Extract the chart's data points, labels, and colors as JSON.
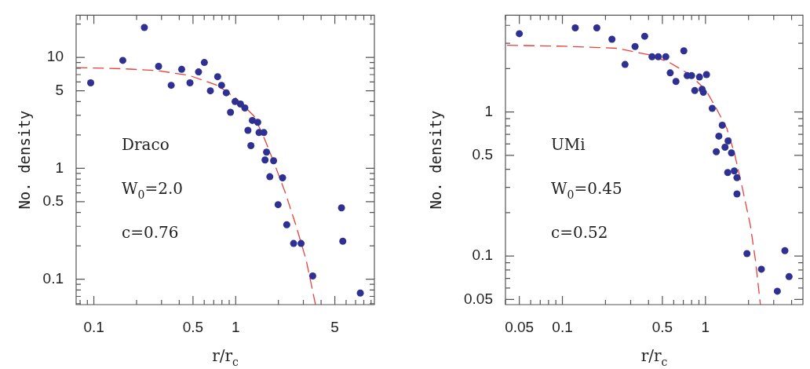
{
  "chart_data": [
    {
      "type": "scatter",
      "xlabel": "r/r$_{c}$",
      "ylabel": "No. density",
      "log": "xy",
      "marker": "circle",
      "xlim": [
        0.075,
        9.5
      ],
      "xticks": [
        {
          "value": 0.08,
          "label": null
        },
        {
          "value": 0.09,
          "label": null
        },
        0.1,
        {
          "value": 0.2,
          "label": null
        },
        {
          "value": 0.3,
          "label": null
        },
        {
          "value": 0.4,
          "label": null
        },
        0.5,
        {
          "value": 0.6,
          "label": null
        },
        {
          "value": 0.7,
          "label": null
        },
        {
          "value": 0.8,
          "label": null
        },
        {
          "value": 0.9,
          "label": null
        },
        1,
        {
          "value": 2,
          "label": null
        },
        {
          "value": 3,
          "label": null
        },
        {
          "value": 4,
          "label": null
        },
        5,
        {
          "value": 6,
          "label": null
        },
        {
          "value": 7,
          "label": null
        },
        {
          "value": 8,
          "label": null
        },
        {
          "value": 9,
          "label": null
        }
      ],
      "ylim": [
        0.059,
        24
      ],
      "yticks": [
        {
          "value": 0.06,
          "label": null
        },
        {
          "value": 0.07,
          "label": null
        },
        {
          "value": 0.08,
          "label": null
        },
        {
          "value": 0.09,
          "label": null
        },
        0.1,
        {
          "value": 0.2,
          "label": null
        },
        {
          "value": 0.3,
          "label": null
        },
        {
          "value": 0.4,
          "label": null
        },
        0.5,
        {
          "value": 0.6,
          "label": null
        },
        {
          "value": 0.7,
          "label": null
        },
        {
          "value": 0.8,
          "label": null
        },
        {
          "value": 0.9,
          "label": null
        },
        1,
        {
          "value": 2,
          "label": null
        },
        {
          "value": 3,
          "label": null
        },
        {
          "value": 4,
          "label": null
        },
        5,
        {
          "value": 6,
          "label": null
        },
        {
          "value": 7,
          "label": null
        },
        {
          "value": 8,
          "label": null
        },
        {
          "value": 9,
          "label": null
        },
        10,
        {
          "value": 20,
          "label": null
        }
      ],
      "annotations": [
        "Draco",
        "W$_{0}$=2.0",
        "c=0.76"
      ],
      "series": [
        {
          "color": "#2e3192",
          "x": [
            0.095,
            0.16,
            0.227,
            0.286,
            0.351,
            0.416,
            0.476,
            0.547,
            0.601,
            0.663,
            0.746,
            0.795,
            0.858,
            0.919,
            0.99,
            1.08,
            1.16,
            1.22,
            1.28,
            1.31,
            1.43,
            1.46,
            1.58,
            1.65,
            1.61,
            1.74,
            1.85,
            1.99,
            2.14,
            2.29,
            2.56,
            2.89,
            3.49,
            5.57,
            5.69,
            7.56
          ],
          "values": [
            5.9,
            9.4,
            18.6,
            8.3,
            5.6,
            7.8,
            5.9,
            7.4,
            9.0,
            5.0,
            6.7,
            5.6,
            4.8,
            3.2,
            4.0,
            3.8,
            3.5,
            2.2,
            1.6,
            2.7,
            2.6,
            2.1,
            2.1,
            1.4,
            1.19,
            0.84,
            1.17,
            0.47,
            0.82,
            0.31,
            0.21,
            0.21,
            0.107,
            0.44,
            0.22,
            0.075
          ]
        },
        {
          "type": "line",
          "color": "#e8403a",
          "line_style": "dashed",
          "marker": "none",
          "x": [
            0.0753,
            0.161,
            0.28,
            0.466,
            0.743,
            1.0,
            1.35,
            1.6,
            1.89,
            2.24,
            2.65,
            3.14,
            3.65
          ],
          "values": [
            8.1,
            7.9,
            7.6,
            6.9,
            5.6,
            4.3,
            2.95,
            1.83,
            1.07,
            0.6,
            0.31,
            0.149,
            0.059
          ]
        }
      ]
    },
    {
      "type": "scatter",
      "xlabel": "r/r$_{c}$",
      "ylabel": "No. density",
      "log": "xy",
      "marker": "circle",
      "xlim": [
        0.04,
        4.8
      ],
      "xticks": [
        {
          "value": 0.04,
          "label": null
        },
        0.05,
        {
          "value": 0.06,
          "label": null
        },
        {
          "value": 0.07,
          "label": null
        },
        {
          "value": 0.08,
          "label": null
        },
        {
          "value": 0.09,
          "label": null
        },
        0.1,
        {
          "value": 0.2,
          "label": null
        },
        {
          "value": 0.3,
          "label": null
        },
        {
          "value": 0.4,
          "label": null
        },
        0.5,
        {
          "value": 0.6,
          "label": null
        },
        {
          "value": 0.7,
          "label": null
        },
        {
          "value": 0.8,
          "label": null
        },
        {
          "value": 0.9,
          "label": null
        },
        1,
        {
          "value": 2,
          "label": null
        },
        {
          "value": 3,
          "label": null
        },
        {
          "value": 4,
          "label": null
        }
      ],
      "ylim": [
        0.046,
        4.7
      ],
      "yticks": [
        0.05,
        {
          "value": 0.06,
          "label": null
        },
        {
          "value": 0.07,
          "label": null
        },
        {
          "value": 0.08,
          "label": null
        },
        {
          "value": 0.09,
          "label": null
        },
        0.1,
        {
          "value": 0.2,
          "label": null
        },
        {
          "value": 0.3,
          "label": null
        },
        {
          "value": 0.4,
          "label": null
        },
        0.5,
        {
          "value": 0.6,
          "label": null
        },
        {
          "value": 0.7,
          "label": null
        },
        {
          "value": 0.8,
          "label": null
        },
        {
          "value": 0.9,
          "label": null
        },
        1,
        {
          "value": 2,
          "label": null
        },
        {
          "value": 3,
          "label": null
        },
        {
          "value": 4,
          "label": null
        }
      ],
      "annotations": [
        "UMi",
        "W$_{0}$=0.45",
        "c=0.52"
      ],
      "series": [
        {
          "color": "#2e3192",
          "x": [
            0.05,
            0.123,
            0.174,
            0.222,
            0.274,
            0.322,
            0.376,
            0.423,
            0.468,
            0.528,
            0.567,
            0.622,
            0.706,
            0.745,
            0.8,
            0.842,
            0.908,
            0.947,
            0.967,
            1.017,
            1.115,
            1.19,
            1.24,
            1.31,
            1.37,
            1.44,
            1.43,
            1.52,
            1.59,
            1.66,
            1.66,
            1.95,
            2.46,
            3.18,
            3.59,
            3.84
          ],
          "values": [
            3.5,
            3.84,
            3.84,
            3.2,
            2.14,
            2.85,
            3.36,
            2.42,
            2.42,
            2.42,
            1.87,
            1.63,
            2.66,
            1.79,
            1.79,
            1.41,
            1.75,
            1.44,
            1.37,
            1.82,
            1.06,
            0.53,
            0.68,
            0.81,
            0.57,
            0.63,
            0.38,
            0.52,
            0.39,
            0.35,
            0.27,
            0.104,
            0.081,
            0.057,
            0.109,
            0.072
          ]
        },
        {
          "type": "line",
          "color": "#e8403a",
          "line_style": "dashed",
          "marker": "none",
          "x": [
            0.041,
            0.104,
            0.242,
            0.4,
            0.56,
            0.784,
            1.01,
            1.19,
            1.41,
            1.6,
            1.82,
            2.06,
            2.24,
            2.42
          ],
          "values": [
            2.91,
            2.86,
            2.77,
            2.5,
            2.21,
            1.81,
            1.41,
            1.06,
            0.77,
            0.51,
            0.29,
            0.163,
            0.092,
            0.046
          ]
        }
      ]
    }
  ]
}
